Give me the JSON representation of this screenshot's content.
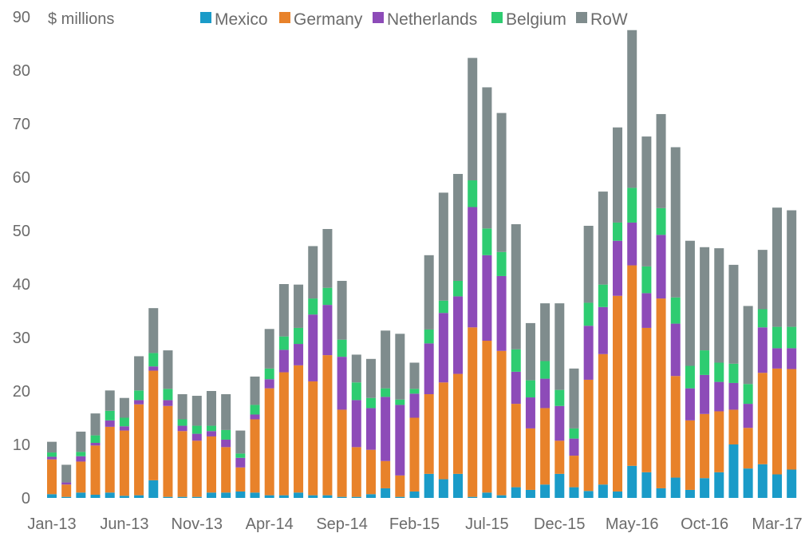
{
  "chart_data": {
    "type": "stacked-bar",
    "title": "",
    "unit_label": "$ millions",
    "xlabel": "",
    "ylabel": "$ millions",
    "ylim": [
      0,
      90
    ],
    "yticks": [
      0,
      10,
      20,
      30,
      40,
      50,
      60,
      70,
      80,
      90
    ],
    "legend_position": "top-center",
    "grid": false,
    "categories": [
      "Jan-13",
      "Feb-13",
      "Mar-13",
      "Apr-13",
      "May-13",
      "Jun-13",
      "Jul-13",
      "Aug-13",
      "Sep-13",
      "Oct-13",
      "Nov-13",
      "Dec-13",
      "Jan-14",
      "Feb-14",
      "Mar-14",
      "Apr-14",
      "May-14",
      "Jun-14",
      "Jul-14",
      "Aug-14",
      "Sep-14",
      "Oct-14",
      "Nov-14",
      "Dec-14",
      "Jan-15",
      "Feb-15",
      "Mar-15",
      "Apr-15",
      "May-15",
      "Jun-15",
      "Jul-15",
      "Aug-15",
      "Sep-15",
      "Oct-15",
      "Nov-15",
      "Dec-15",
      "Jan-16",
      "Feb-16",
      "Mar-16",
      "Apr-16",
      "May-16",
      "Jun-16",
      "Jul-16",
      "Aug-16",
      "Sep-16",
      "Oct-16",
      "Nov-16",
      "Dec-16",
      "Jan-17",
      "Feb-17",
      "Mar-17",
      "Apr-17"
    ],
    "xtick_labels": [
      "Jan-13",
      "Jun-13",
      "Nov-13",
      "Apr-14",
      "Sep-14",
      "Feb-15",
      "Jul-15",
      "Dec-15",
      "May-16",
      "Oct-16",
      "Mar-17"
    ],
    "series": [
      {
        "name": "Mexico",
        "color": "#1a9bc8",
        "values": [
          0.7,
          0.2,
          1.0,
          0.6,
          1.0,
          0.4,
          0.5,
          3.3,
          0.2,
          0.2,
          0.2,
          1.0,
          1.0,
          1.2,
          1.0,
          0.5,
          0.5,
          1.0,
          0.5,
          0.5,
          0.2,
          0.2,
          0.7,
          1.8,
          0.2,
          1.2,
          4.5,
          3.5,
          4.5,
          0.2,
          1.0,
          0.5,
          2.0,
          1.5,
          2.5,
          4.5,
          2.0,
          1.3,
          2.5,
          1.2,
          6.0,
          4.8,
          1.8,
          3.8,
          1.5,
          3.7,
          4.8,
          10.0,
          5.5,
          6.3,
          4.4,
          5.3
        ]
      },
      {
        "name": "Germany",
        "color": "#e8822a",
        "values": [
          6.5,
          2.3,
          5.8,
          9.2,
          12.3,
          12.2,
          17.0,
          20.5,
          17.0,
          12.3,
          10.5,
          10.5,
          8.5,
          4.5,
          13.7,
          20.0,
          23.0,
          23.8,
          21.3,
          26.2,
          16.3,
          9.3,
          8.3,
          5.1,
          4.0,
          13.8,
          14.9,
          18.1,
          18.7,
          31.7,
          28.4,
          27.0,
          15.6,
          11.5,
          14.3,
          6.2,
          5.9,
          20.8,
          24.4,
          36.6,
          37.5,
          27.0,
          35.5,
          19.0,
          13.0,
          12.0,
          11.4,
          6.5,
          7.6,
          17.1,
          19.8,
          18.8
        ]
      },
      {
        "name": "Netherlands",
        "color": "#8d4bb8",
        "values": [
          0.5,
          0.4,
          1.0,
          0.5,
          1.2,
          0.8,
          0.8,
          0.8,
          1.1,
          1.0,
          1.3,
          1.0,
          1.4,
          1.8,
          0.9,
          1.7,
          4.2,
          4.0,
          12.5,
          9.4,
          9.9,
          8.8,
          7.8,
          12.0,
          13.2,
          4.5,
          9.5,
          13.0,
          14.5,
          22.5,
          16.0,
          14.0,
          6.0,
          5.8,
          5.5,
          6.5,
          3.2,
          10.1,
          8.8,
          10.3,
          8.0,
          6.5,
          11.9,
          9.8,
          6.0,
          7.3,
          5.5,
          5.0,
          4.5,
          8.5,
          3.8,
          3.9
        ]
      },
      {
        "name": "Belgium",
        "color": "#2ecc71",
        "values": [
          0.8,
          0.0,
          0.8,
          1.4,
          1.8,
          1.6,
          1.8,
          2.5,
          2.1,
          1.2,
          1.5,
          1.0,
          1.8,
          0.8,
          1.8,
          2.0,
          2.5,
          3.0,
          3.0,
          3.2,
          3.2,
          3.3,
          1.9,
          1.6,
          1.0,
          0.9,
          2.6,
          2.3,
          2.9,
          5.0,
          5.0,
          4.5,
          4.2,
          3.2,
          3.3,
          3.0,
          1.9,
          4.3,
          4.2,
          3.4,
          6.5,
          5.0,
          5.0,
          4.9,
          4.2,
          4.6,
          3.6,
          3.6,
          3.7,
          3.4,
          4.0,
          4.0
        ]
      },
      {
        "name": "RoW",
        "color": "#7f8c8d",
        "values": [
          2.0,
          3.3,
          3.8,
          4.1,
          3.8,
          3.7,
          6.4,
          8.4,
          7.2,
          4.7,
          5.6,
          6.5,
          6.7,
          4.3,
          5.3,
          7.4,
          9.8,
          8.1,
          9.8,
          11.0,
          11.0,
          5.2,
          7.3,
          10.8,
          12.3,
          4.9,
          13.9,
          20.2,
          20.0,
          22.9,
          26.4,
          26.0,
          23.4,
          10.7,
          10.8,
          16.2,
          11.2,
          14.4,
          17.4,
          17.8,
          29.5,
          24.3,
          17.6,
          28.1,
          23.4,
          19.3,
          21.4,
          18.5,
          14.6,
          11.1,
          22.3,
          21.8
        ]
      }
    ]
  }
}
